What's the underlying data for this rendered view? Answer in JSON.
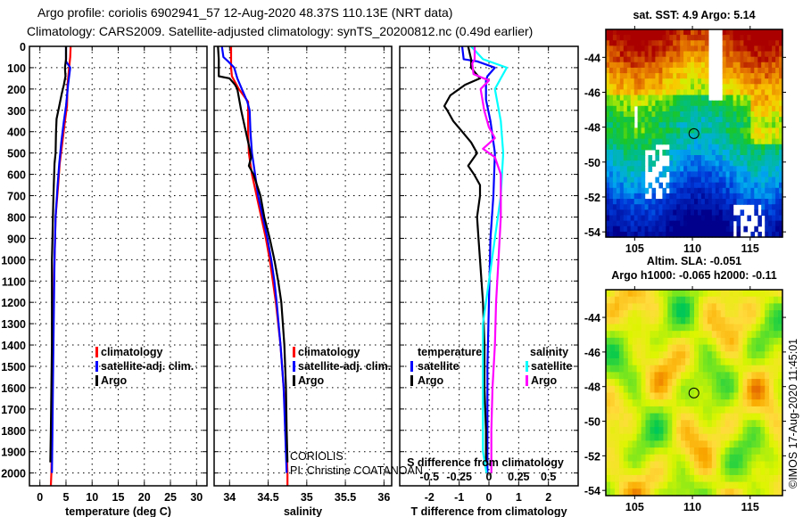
{
  "header": {
    "title_line1": "Argo profile: coriolis 6902941_57 12-Aug-2020 48.37S 110.13E (NRT data)",
    "title_line2": "Climatology: CARS2009. Satellite-adjusted climatology: synTS_20200812.nc (0.49d earlier)"
  },
  "chart_data": [
    {
      "type": "line",
      "id": "temperature",
      "xlabel": "temperature (deg C)",
      "ylabel": "",
      "xlim": [
        -2,
        32
      ],
      "ylim": [
        2060,
        0
      ],
      "xticks": [
        0,
        5,
        10,
        15,
        20,
        25,
        30
      ],
      "yticks": [
        0,
        100,
        200,
        300,
        400,
        500,
        600,
        700,
        800,
        900,
        1000,
        1100,
        1200,
        1300,
        1400,
        1500,
        1600,
        1700,
        1800,
        1900,
        2000
      ],
      "grid": true,
      "legend": {
        "position": "center-right",
        "entries": [
          {
            "label": "climatology",
            "color": "#ff0000"
          },
          {
            "label": "satellite-adj. clim.",
            "color": "#0000ff"
          },
          {
            "label": "Argo",
            "color": "#000000"
          }
        ]
      },
      "series": [
        {
          "name": "climatology",
          "color": "#ff0000",
          "depth": [
            0,
            50,
            100,
            180,
            280,
            350,
            450,
            550,
            650,
            800,
            1000,
            1200,
            1400,
            1600,
            1800,
            2000,
            2060
          ],
          "values": [
            5.9,
            5.8,
            5.6,
            5.3,
            5.2,
            4.8,
            4.3,
            3.8,
            3.5,
            3.0,
            2.8,
            2.6,
            2.5,
            2.4,
            2.3,
            2.2,
            2.1
          ]
        },
        {
          "name": "satellite-adj. clim.",
          "color": "#0000ff",
          "depth": [
            0,
            50,
            70,
            100,
            180,
            280,
            350,
            450,
            550,
            650,
            800,
            1000,
            1200,
            1400,
            1600,
            1800,
            2000
          ],
          "values": [
            5.0,
            5.0,
            5.0,
            5.8,
            5.4,
            5.0,
            4.6,
            4.1,
            3.7,
            3.4,
            3.0,
            2.8,
            2.7,
            2.6,
            2.5,
            2.4,
            2.3
          ]
        },
        {
          "name": "Argo",
          "color": "#000000",
          "depth": [
            0,
            60,
            100,
            140,
            180,
            220,
            280,
            340,
            400,
            500,
            550,
            700,
            800,
            900,
            1000,
            1200,
            1400,
            1600,
            1800,
            1950
          ],
          "values": [
            5.0,
            5.0,
            4.8,
            4.9,
            4.6,
            4.2,
            3.7,
            3.2,
            3.1,
            3.0,
            2.8,
            2.6,
            2.5,
            2.4,
            2.3,
            2.3,
            2.3,
            2.2,
            2.1,
            2.0
          ]
        }
      ]
    },
    {
      "type": "line",
      "id": "salinity",
      "xlabel": "salinity",
      "xlim": [
        33.8,
        36.1
      ],
      "ylim": [
        2060,
        0
      ],
      "xticks": [
        34,
        34.5,
        35,
        35.5,
        36
      ],
      "grid": true,
      "legend": {
        "position": "center-right",
        "entries": [
          {
            "label": "climatology",
            "color": "#ff0000"
          },
          {
            "label": "satellite-adj. clim.",
            "color": "#0000ff"
          },
          {
            "label": "Argo",
            "color": "#000000"
          }
        ]
      },
      "annotations": [
        "CORIOLIS",
        "PI: Christine COATANOAN"
      ],
      "series": [
        {
          "name": "climatology",
          "color": "#ff0000",
          "depth": [
            0,
            100,
            140,
            200,
            260,
            300,
            400,
            500,
            600,
            700,
            800,
            900,
            1000,
            1100,
            1200,
            1400,
            1600,
            1800,
            2000,
            2060
          ],
          "values": [
            34.02,
            34.02,
            34.03,
            34.12,
            34.24,
            34.24,
            34.24,
            34.25,
            34.29,
            34.35,
            34.41,
            34.47,
            34.52,
            34.56,
            34.6,
            34.66,
            34.7,
            34.73,
            34.75,
            34.75
          ]
        },
        {
          "name": "satellite-adj. clim.",
          "color": "#0000ff",
          "depth": [
            0,
            50,
            70,
            100,
            150,
            200,
            260,
            300,
            400,
            500,
            600,
            700,
            800,
            900,
            1000,
            1100,
            1200,
            1400,
            1600,
            1800,
            2000
          ],
          "values": [
            33.9,
            33.92,
            33.98,
            34.06,
            34.1,
            34.16,
            34.23,
            34.26,
            34.27,
            34.29,
            34.33,
            34.37,
            34.43,
            34.49,
            34.54,
            34.58,
            34.61,
            34.66,
            34.7,
            34.72,
            34.74
          ]
        },
        {
          "name": "Argo",
          "color": "#000000",
          "depth": [
            0,
            60,
            140,
            150,
            180,
            200,
            300,
            400,
            480,
            520,
            560,
            600,
            700,
            800,
            900,
            1000,
            1100,
            1200,
            1400,
            1600,
            1800,
            1950
          ],
          "values": [
            33.85,
            33.86,
            33.86,
            34.0,
            34.07,
            34.1,
            34.15,
            34.21,
            34.26,
            34.28,
            34.25,
            34.31,
            34.4,
            34.45,
            34.52,
            34.58,
            34.63,
            34.67,
            34.71,
            34.73,
            34.74,
            34.75
          ]
        }
      ]
    },
    {
      "type": "line",
      "id": "difference",
      "xlabel": "T difference from climatology",
      "x2label": "S difference from climatology",
      "xlim": [
        -3,
        3
      ],
      "x2lim": [
        -0.75,
        0.75
      ],
      "ylim": [
        2060,
        0
      ],
      "xticks": [
        -2,
        -1,
        0,
        1,
        2
      ],
      "x2ticks": [
        "-0.5",
        "-0.25",
        "0",
        "0.25",
        "0.5"
      ],
      "grid": true,
      "legend": {
        "position": "lower-center",
        "entries": [
          {
            "group": "temperature",
            "label": "satellite",
            "color": "#0000ff"
          },
          {
            "group": "temperature",
            "label": "Argo",
            "color": "#000000"
          },
          {
            "group": "salinity",
            "label": "satellite",
            "color": "#00ffff"
          },
          {
            "group": "salinity",
            "label": "Argo",
            "color": "#ff00ff"
          }
        ]
      },
      "series": [
        {
          "name": "temperature satellite",
          "color": "#0000ff",
          "depth": [
            0,
            60,
            70,
            100,
            140,
            160,
            250,
            350,
            500,
            700,
            900,
            1200,
            1500,
            1800,
            2000
          ],
          "values": [
            -0.9,
            -0.85,
            -0.4,
            0.2,
            -0.05,
            -0.1,
            -0.1,
            0.05,
            0.2,
            0.15,
            0.05,
            0.0,
            -0.05,
            -0.05,
            -0.05
          ]
        },
        {
          "name": "temperature Argo",
          "color": "#000000",
          "depth": [
            0,
            60,
            100,
            150,
            180,
            230,
            280,
            300,
            350,
            400,
            450,
            500,
            560,
            600,
            650,
            700,
            800,
            900,
            1000,
            1200,
            1400,
            1600,
            1800,
            1950
          ],
          "values": [
            -0.7,
            -0.6,
            -0.6,
            -0.3,
            -0.8,
            -1.3,
            -1.5,
            -1.4,
            -1.2,
            -0.9,
            -0.6,
            -0.4,
            -0.7,
            -0.5,
            -0.3,
            -0.3,
            -0.4,
            -0.35,
            -0.3,
            -0.2,
            -0.15,
            -0.15,
            -0.1,
            -0.1
          ]
        },
        {
          "name": "salinity satellite",
          "color": "#00ffff",
          "depth": [
            0,
            60,
            100,
            150,
            200,
            350,
            500,
            700,
            900,
            1100,
            1300,
            1500,
            1700,
            1900,
            2000
          ],
          "values": [
            -0.15,
            -0.05,
            0.15,
            0.1,
            0.05,
            0.1,
            0.12,
            0.1,
            0.05,
            0.0,
            -0.05,
            -0.05,
            -0.05,
            -0.05,
            -0.02
          ]
        },
        {
          "name": "salinity Argo",
          "color": "#ff00ff",
          "depth": [
            0,
            60,
            80,
            130,
            160,
            200,
            300,
            380,
            430,
            480,
            520,
            600,
            800,
            1000,
            1200,
            1400,
            1600,
            1800,
            2000
          ],
          "values": [
            -0.12,
            -0.12,
            -0.14,
            -0.13,
            0.0,
            -0.07,
            -0.04,
            0.0,
            0.05,
            -0.05,
            0.05,
            0.1,
            0.1,
            0.08,
            0.06,
            0.05,
            0.03,
            0.02,
            0.02
          ]
        }
      ]
    },
    {
      "type": "heatmap",
      "id": "sst-map",
      "title": "sat. SST: 4.9 Argo: 5.14",
      "xlim": [
        102.5,
        117.8
      ],
      "ylim": [
        -54.3,
        -42.4
      ],
      "xticks": [
        105,
        110,
        115
      ],
      "yticks": [
        -44,
        -46,
        -48,
        -50,
        -52,
        -54
      ],
      "marker": {
        "lon": 110.13,
        "lat": -48.37
      }
    },
    {
      "type": "heatmap",
      "id": "sla-map",
      "title": "Altim. SLA: -0.051",
      "subtitle": "Argo h1000: -0.065 h2000: -0.11",
      "xlim": [
        102.5,
        117.8
      ],
      "ylim": [
        -54.3,
        -42.4
      ],
      "xticks": [
        105,
        110,
        115
      ],
      "yticks": [
        -44,
        -46,
        -48,
        -50,
        -52,
        -54
      ],
      "marker": {
        "lon": 110.13,
        "lat": -48.37
      }
    }
  ],
  "footer": {
    "credit": "©IMOS 17-Aug-2020 11:45:01"
  }
}
